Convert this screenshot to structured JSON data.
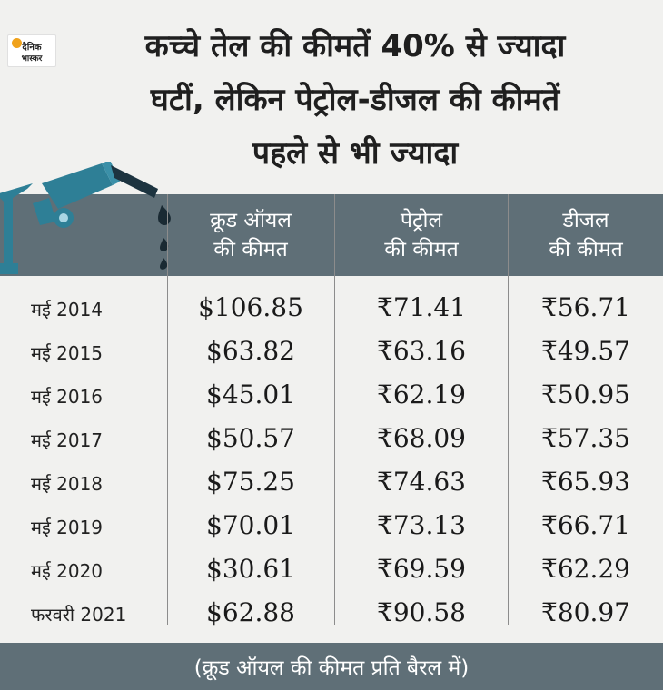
{
  "logo": {
    "line1": "दैनिक",
    "line2": "भास्कर"
  },
  "headline": {
    "line1": "कच्चे तेल की कीमतें 40% से ज्यादा",
    "line2": "घटीं, लेकिन पेट्रोल-डीजल की कीमतें",
    "line3": "पहले से भी ज्यादा"
  },
  "columns": [
    {
      "line1": "क्रूड ऑयल",
      "line2": "की कीमत"
    },
    {
      "line1": "पेट्रोल",
      "line2": "की कीमत"
    },
    {
      "line1": "डीजल",
      "line2": "की कीमत"
    }
  ],
  "rows": [
    {
      "date": "मई 2014",
      "crude": "$106.85",
      "petrol": "₹71.41",
      "diesel": "₹56.71"
    },
    {
      "date": "मई 2015",
      "crude": "$63.82",
      "petrol": "₹63.16",
      "diesel": "₹49.57"
    },
    {
      "date": "मई 2016",
      "crude": "$45.01",
      "petrol": "₹62.19",
      "diesel": "₹50.95"
    },
    {
      "date": "मई 2017",
      "crude": "$50.57",
      "petrol": "₹68.09",
      "diesel": "₹57.35"
    },
    {
      "date": "मई 2018",
      "crude": "$75.25",
      "petrol": "₹74.63",
      "diesel": "₹65.93"
    },
    {
      "date": "मई 2019",
      "crude": "$70.01",
      "petrol": "₹73.13",
      "diesel": "₹66.71"
    },
    {
      "date": "मई 2020",
      "crude": "$30.61",
      "petrol": "₹69.59",
      "diesel": "₹62.29"
    },
    {
      "date": "फरवरी 2021",
      "crude": "$62.88",
      "petrol": "₹90.58",
      "diesel": "₹80.97"
    }
  ],
  "footnote": "(क्रूड ऑयल की कीमत प्रति बैरल में)",
  "colors": {
    "band": "#5f6f77",
    "nozzle": "#2e7f96",
    "background": "#f1f1ef"
  }
}
